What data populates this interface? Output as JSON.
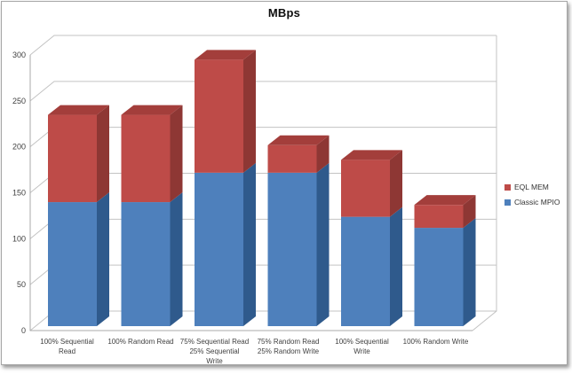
{
  "chart_title": "MBps",
  "chart_data": {
    "type": "bar",
    "subtype": "stacked-3d",
    "title": "MBps",
    "categories": [
      "100% Sequential Read",
      "100% Random Read",
      "75% Sequential Read 25% Sequential Write",
      "75% Random Read 25% Random Write",
      "100% Sequential Write",
      "100% Random Write"
    ],
    "category_label_lines": [
      [
        "100% Sequential",
        "Read"
      ],
      [
        "100% Random Read"
      ],
      [
        "75% Sequential Read",
        "25% Sequential",
        "Write"
      ],
      [
        "75% Random Read",
        "25% Random Write"
      ],
      [
        "100% Sequential",
        "Write"
      ],
      [
        "100% Random Write"
      ]
    ],
    "series": [
      {
        "name": "Classic MPIO",
        "color": "#4e80bc",
        "side_color": "#2f5a8c",
        "top_color": "#3e6da5",
        "values": [
          135,
          135,
          167,
          167,
          119,
          107
        ]
      },
      {
        "name": "EQL MEM",
        "color": "#be4b48",
        "side_color": "#8e3734",
        "top_color": "#a33e3b",
        "values": [
          95,
          95,
          123,
          30,
          62,
          25
        ]
      }
    ],
    "stack_totals": [
      230,
      230,
      290,
      197,
      181,
      132
    ],
    "ylim": [
      0,
      300
    ],
    "ytick_step": 50,
    "yticks": [
      "0",
      "50",
      "100",
      "150",
      "200",
      "250",
      "300"
    ],
    "xlabel": "",
    "ylabel": "",
    "grid": true,
    "legend_position": "right"
  },
  "legend": {
    "items": [
      {
        "label": "EQL MEM",
        "color": "#be4b48"
      },
      {
        "label": "Classic MPIO",
        "color": "#4e80bc"
      }
    ]
  },
  "colors": {
    "gridline": "#c3c3c3",
    "axis": "#a9a9a9",
    "tick_label": "#3f3f3f",
    "frame_border": "#a6a6a6",
    "background": "#ffffff"
  }
}
